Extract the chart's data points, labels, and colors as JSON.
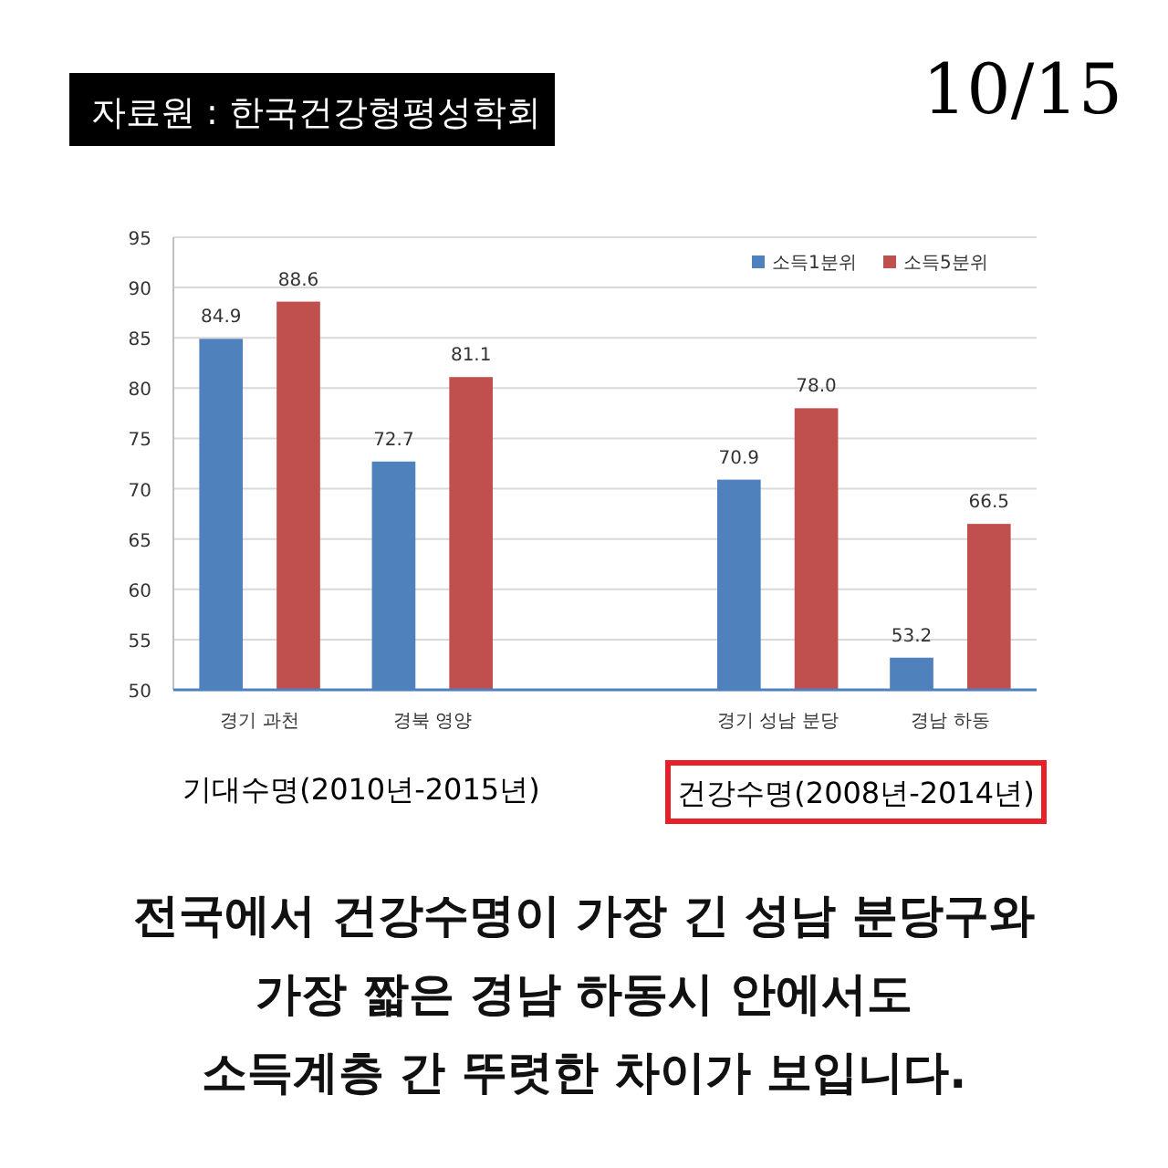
{
  "chart_data": {
    "type": "bar",
    "categories": [
      "경기 과천",
      "경북 영양",
      null,
      "경기 성남 분당",
      "경남 하동"
    ],
    "series": [
      {
        "name": "소득1분위",
        "color": "#4f81bd",
        "values": [
          84.9,
          72.7,
          null,
          70.9,
          53.2
        ],
        "value_labels": [
          "84.9",
          "72.7",
          null,
          "70.9",
          "53.2"
        ]
      },
      {
        "name": "소득5분위",
        "color": "#c0504d",
        "values": [
          88.6,
          81.1,
          null,
          78.0,
          66.5
        ],
        "value_labels": [
          "88.6",
          "81.1",
          null,
          "78.0",
          "66.5"
        ]
      }
    ],
    "ylim": [
      50,
      95
    ],
    "yticks": [
      50,
      55,
      60,
      65,
      70,
      75,
      80,
      85,
      90,
      95
    ],
    "grid": "y",
    "legend": "top right",
    "annotations": [
      "자료원 : 한국건강형평성학회",
      "10/15",
      "기대수명(2010년-2015년)",
      "건강수명(2008년-2014년)",
      "전국에서 건강수명이 가장 긴 성남 분당구와\n가장 짧은 경남 하동시 안에서도\n소득계층 간 뚜렷한 차이가 보입니다."
    ]
  }
}
